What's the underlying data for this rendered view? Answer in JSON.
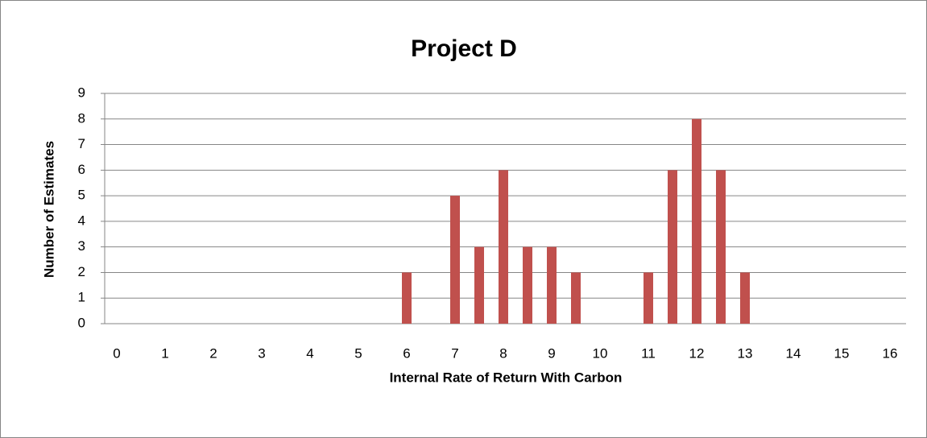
{
  "chart_data": {
    "type": "bar",
    "title": "Project D",
    "x_label": "Internal Rate of Return With Carbon",
    "y_label": "Number of Estimates",
    "categories": [
      0,
      null,
      1,
      null,
      2,
      null,
      3,
      null,
      4,
      null,
      5,
      null,
      6,
      null,
      7,
      null,
      8,
      null,
      9,
      null,
      10,
      null,
      11,
      null,
      12,
      null,
      13,
      null,
      14,
      null,
      15,
      null,
      16
    ],
    "values": [
      0,
      0,
      0,
      0,
      0,
      0,
      0,
      0,
      0,
      0,
      0,
      0,
      2,
      0,
      5,
      3,
      6,
      3,
      3,
      2,
      0,
      0,
      2,
      6,
      8,
      6,
      2,
      0,
      0,
      0,
      0,
      0,
      0
    ],
    "color": "#c0504d",
    "ylim": [
      0,
      9
    ],
    "yticks": [
      0,
      1,
      2,
      3,
      4,
      5,
      6,
      7,
      8,
      9
    ],
    "grid": true
  }
}
